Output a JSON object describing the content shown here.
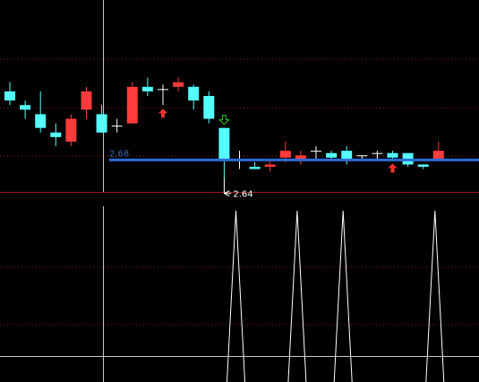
{
  "colors": {
    "background": "#000000",
    "up": "#ff3b3b",
    "down": "#54ffff",
    "doji": "#ffffff",
    "grid": "#8b1a1a",
    "divider": "#a01818",
    "crosshair": "#c8c8c8",
    "level_line": "#2e6bd6",
    "level_text": "#3a64b4",
    "buy_arrow": "#ff3030",
    "sell_arrow": "#20d020",
    "indicator": "#ffffff"
  },
  "chart_data": [
    {
      "type": "candlestick",
      "title": "",
      "level_line": {
        "value": 2.68,
        "label": "2.68"
      },
      "annotation": {
        "value": 2.64,
        "label": "2.64",
        "direction": "left"
      },
      "ylim": [
        2.61,
        3.03
      ],
      "grid": true,
      "candles": [
        {
          "o": 2.83,
          "h": 2.85,
          "l": 2.8,
          "c": 2.81
        },
        {
          "o": 2.8,
          "h": 2.81,
          "l": 2.77,
          "c": 2.79
        },
        {
          "o": 2.78,
          "h": 2.83,
          "l": 2.74,
          "c": 2.75
        },
        {
          "o": 2.74,
          "h": 2.76,
          "l": 2.71,
          "c": 2.73
        },
        {
          "o": 2.72,
          "h": 2.78,
          "l": 2.71,
          "c": 2.77
        },
        {
          "o": 2.79,
          "h": 2.84,
          "l": 2.77,
          "c": 2.83
        },
        {
          "o": 2.78,
          "h": 2.8,
          "l": 2.74,
          "c": 2.74
        },
        {
          "o": 2.755,
          "h": 2.77,
          "l": 2.74,
          "c": 2.755
        },
        {
          "o": 2.76,
          "h": 2.85,
          "l": 2.76,
          "c": 2.84
        },
        {
          "o": 2.84,
          "h": 2.86,
          "l": 2.82,
          "c": 2.83
        },
        {
          "o": 2.835,
          "h": 2.845,
          "l": 2.8,
          "c": 2.835
        },
        {
          "o": 2.84,
          "h": 2.86,
          "l": 2.83,
          "c": 2.85
        },
        {
          "o": 2.84,
          "h": 2.845,
          "l": 2.79,
          "c": 2.81
        },
        {
          "o": 2.82,
          "h": 2.83,
          "l": 2.76,
          "c": 2.77
        },
        {
          "o": 2.75,
          "h": 2.75,
          "l": 2.64,
          "c": 2.68
        },
        {
          "o": 2.68,
          "h": 2.7,
          "l": 2.66,
          "c": 2.68
        },
        {
          "o": 2.665,
          "h": 2.675,
          "l": 2.66,
          "c": 2.66
        },
        {
          "o": 2.665,
          "h": 2.68,
          "l": 2.655,
          "c": 2.67
        },
        {
          "o": 2.685,
          "h": 2.72,
          "l": 2.675,
          "c": 2.7
        },
        {
          "o": 2.68,
          "h": 2.7,
          "l": 2.67,
          "c": 2.69
        },
        {
          "o": 2.7,
          "h": 2.71,
          "l": 2.68,
          "c": 2.7
        },
        {
          "o": 2.695,
          "h": 2.7,
          "l": 2.68,
          "c": 2.685
        },
        {
          "o": 2.7,
          "h": 2.71,
          "l": 2.67,
          "c": 2.68
        },
        {
          "o": 2.69,
          "h": 2.69,
          "l": 2.68,
          "c": 2.69
        },
        {
          "o": 2.695,
          "h": 2.7,
          "l": 2.68,
          "c": 2.695
        },
        {
          "o": 2.695,
          "h": 2.7,
          "l": 2.68,
          "c": 2.685
        },
        {
          "o": 2.695,
          "h": 2.695,
          "l": 2.665,
          "c": 2.67
        },
        {
          "o": 2.67,
          "h": 2.67,
          "l": 2.66,
          "c": 2.665
        },
        {
          "o": 2.68,
          "h": 2.72,
          "l": 2.68,
          "c": 2.7
        }
      ],
      "markers": [
        {
          "index": 10,
          "kind": "buy-arrow-up"
        },
        {
          "index": 14,
          "kind": "sell-arrow-down"
        },
        {
          "index": 25,
          "kind": "buy-arrow-up"
        }
      ]
    },
    {
      "type": "line",
      "title": "",
      "grid": true,
      "ylim": [
        0,
        1
      ],
      "spikes": [
        {
          "center_index": 15,
          "height": 1
        },
        {
          "center_index": 19,
          "height": 1
        },
        {
          "center_index": 22,
          "height": 1
        },
        {
          "center_index": 28,
          "height": 1
        }
      ]
    }
  ]
}
